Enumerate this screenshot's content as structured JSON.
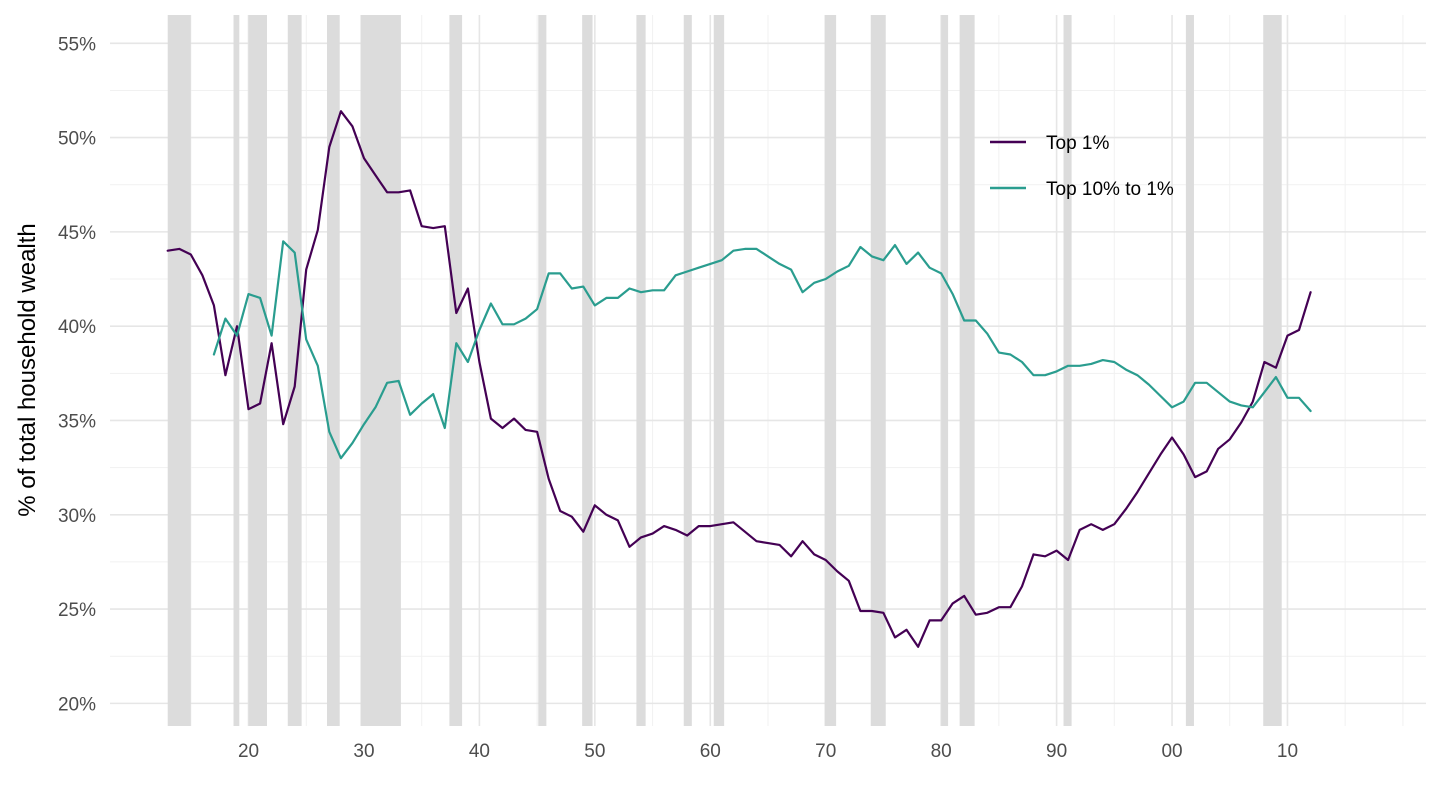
{
  "chart_data": {
    "type": "line",
    "title": "",
    "xlabel": "",
    "ylabel": "% of total household wealth",
    "xlim": [
      1908,
      2022
    ],
    "ylim": [
      18.8,
      56.5
    ],
    "x_major_ticks": [
      1920,
      1930,
      1940,
      1950,
      1960,
      1970,
      1980,
      1990,
      2000,
      2010
    ],
    "x_tick_labels": [
      "20",
      "30",
      "40",
      "50",
      "60",
      "70",
      "80",
      "90",
      "00",
      "10"
    ],
    "y_major_ticks": [
      20,
      25,
      30,
      35,
      40,
      45,
      50,
      55
    ],
    "y_tick_labels": [
      "20%",
      "25%",
      "30%",
      "35%",
      "40%",
      "45%",
      "50%",
      "55%"
    ],
    "grid": true,
    "legend_position": "top-right",
    "recession_shading_color": "#dcdcdc",
    "recessions": [
      [
        1913.0,
        1915.0
      ],
      [
        1918.7,
        1919.2
      ],
      [
        1920.0,
        1921.6
      ],
      [
        1923.4,
        1924.6
      ],
      [
        1926.8,
        1927.9
      ],
      [
        1929.7,
        1933.2
      ],
      [
        1937.4,
        1938.5
      ],
      [
        1945.1,
        1945.8
      ],
      [
        1948.9,
        1949.8
      ],
      [
        1953.6,
        1954.4
      ],
      [
        1957.7,
        1958.4
      ],
      [
        1960.3,
        1961.2
      ],
      [
        1969.9,
        1970.9
      ],
      [
        1973.9,
        1975.2
      ],
      [
        1980.0,
        1980.6
      ],
      [
        1981.6,
        1982.9
      ],
      [
        1990.6,
        1991.3
      ],
      [
        2001.2,
        2001.9
      ],
      [
        2007.9,
        2009.5
      ]
    ],
    "series": [
      {
        "name": "Top 1%",
        "color": "#440154",
        "x": [
          1913,
          1914,
          1915,
          1916,
          1917,
          1918,
          1919,
          1920,
          1921,
          1922,
          1923,
          1924,
          1925,
          1926,
          1927,
          1928,
          1929,
          1930,
          1931,
          1932,
          1933,
          1934,
          1935,
          1936,
          1937,
          1938,
          1939,
          1940,
          1941,
          1942,
          1943,
          1944,
          1945,
          1946,
          1947,
          1948,
          1949,
          1950,
          1951,
          1952,
          1953,
          1954,
          1955,
          1956,
          1957,
          1958,
          1959,
          1960,
          1961,
          1962,
          1963,
          1964,
          1965,
          1966,
          1967,
          1968,
          1969,
          1970,
          1971,
          1972,
          1973,
          1974,
          1975,
          1976,
          1977,
          1978,
          1979,
          1980,
          1981,
          1982,
          1983,
          1984,
          1985,
          1986,
          1987,
          1988,
          1989,
          1990,
          1991,
          1992,
          1993,
          1994,
          1995,
          1996,
          1997,
          1998,
          1999,
          2000,
          2001,
          2002,
          2003,
          2004,
          2005,
          2006,
          2007,
          2008,
          2009,
          2010,
          2011,
          2012
        ],
        "values": [
          44.0,
          44.1,
          43.8,
          42.7,
          41.1,
          37.4,
          40.0,
          35.6,
          35.9,
          39.1,
          34.8,
          36.8,
          43.0,
          45.1,
          49.5,
          51.4,
          50.6,
          48.9,
          48.0,
          47.1,
          47.1,
          47.2,
          45.3,
          45.2,
          45.3,
          40.7,
          42.0,
          38.1,
          35.1,
          34.6,
          35.1,
          34.5,
          34.4,
          31.9,
          30.2,
          29.9,
          29.1,
          30.5,
          30.0,
          29.7,
          28.3,
          28.8,
          29.0,
          29.4,
          29.2,
          28.9,
          29.4,
          29.4,
          29.5,
          29.6,
          29.1,
          28.6,
          28.5,
          28.4,
          27.8,
          28.6,
          27.9,
          27.6,
          27.0,
          26.5,
          24.9,
          24.9,
          24.8,
          23.5,
          23.9,
          23.0,
          24.4,
          24.4,
          25.3,
          25.7,
          24.7,
          24.8,
          25.1,
          25.1,
          26.2,
          27.9,
          27.8,
          28.1,
          27.6,
          29.2,
          29.5,
          29.2,
          29.5,
          30.3,
          31.2,
          32.2,
          33.2,
          34.1,
          33.2,
          32.0,
          32.3,
          33.5,
          34.0,
          34.9,
          36.0,
          38.1,
          37.8,
          39.5,
          39.8,
          41.8
        ]
      },
      {
        "name": "Top 10% to 1%",
        "color": "#2a9d8f",
        "x": [
          1917,
          1918,
          1919,
          1920,
          1921,
          1922,
          1923,
          1924,
          1925,
          1926,
          1927,
          1928,
          1929,
          1930,
          1931,
          1932,
          1933,
          1934,
          1935,
          1936,
          1937,
          1938,
          1939,
          1940,
          1941,
          1942,
          1943,
          1944,
          1945,
          1946,
          1947,
          1948,
          1949,
          1950,
          1951,
          1952,
          1953,
          1954,
          1955,
          1956,
          1957,
          1958,
          1959,
          1960,
          1961,
          1962,
          1963,
          1964,
          1965,
          1966,
          1967,
          1968,
          1969,
          1970,
          1971,
          1972,
          1973,
          1974,
          1975,
          1976,
          1977,
          1978,
          1979,
          1980,
          1981,
          1982,
          1983,
          1984,
          1985,
          1986,
          1987,
          1988,
          1989,
          1990,
          1991,
          1992,
          1993,
          1994,
          1995,
          1996,
          1997,
          1998,
          1999,
          2000,
          2001,
          2002,
          2003,
          2004,
          2005,
          2006,
          2007,
          2008,
          2009,
          2010,
          2011,
          2012
        ],
        "values": [
          38.5,
          40.4,
          39.5,
          41.7,
          41.5,
          39.5,
          44.5,
          43.9,
          39.3,
          37.9,
          34.4,
          33.0,
          33.8,
          34.8,
          35.7,
          37.0,
          37.1,
          35.3,
          35.9,
          36.4,
          34.6,
          39.1,
          38.1,
          39.8,
          41.2,
          40.1,
          40.1,
          40.4,
          40.9,
          42.8,
          42.8,
          42.0,
          42.1,
          41.1,
          41.5,
          41.5,
          42.0,
          41.8,
          41.9,
          41.9,
          42.7,
          42.9,
          43.1,
          43.3,
          43.5,
          44.0,
          44.1,
          44.1,
          43.7,
          43.3,
          43.0,
          41.8,
          42.3,
          42.5,
          42.9,
          43.2,
          44.2,
          43.7,
          43.5,
          44.3,
          43.3,
          43.9,
          43.1,
          42.8,
          41.7,
          40.3,
          40.3,
          39.6,
          38.6,
          38.5,
          38.1,
          37.4,
          37.4,
          37.6,
          37.9,
          37.9,
          38.0,
          38.2,
          38.1,
          37.7,
          37.4,
          36.9,
          36.3,
          35.7,
          36.0,
          37.0,
          37.0,
          36.5,
          36.0,
          35.8,
          35.7,
          36.5,
          37.3,
          36.2,
          36.2,
          35.5
        ]
      }
    ]
  }
}
